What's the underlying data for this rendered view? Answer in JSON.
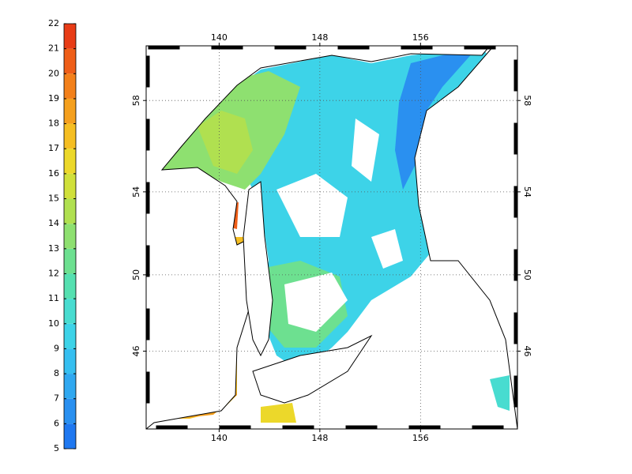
{
  "colorbar": {
    "clim": [
      5,
      22
    ],
    "ticks": [
      5,
      6,
      7,
      8,
      9,
      10,
      11,
      12,
      13,
      14,
      15,
      16,
      17,
      18,
      19,
      20,
      21,
      22
    ],
    "colormap": [
      "#1f78f0",
      "#2a90f0",
      "#30a8f0",
      "#36bff0",
      "#3dd3e8",
      "#48dcd0",
      "#55e0b0",
      "#6de090",
      "#8ee070",
      "#b0e050",
      "#d0e03a",
      "#ecd82a",
      "#f5be22",
      "#f5a01e",
      "#f3801a",
      "#ef5e18",
      "#e83c16"
    ]
  },
  "map": {
    "projection": "mercator",
    "xlim": [
      134.2,
      163.7
    ],
    "ylim": [
      41.6,
      60.2
    ],
    "xticks": [
      140,
      148,
      156
    ],
    "yticks": [
      46,
      50,
      54,
      58
    ],
    "grid": true
  }
}
